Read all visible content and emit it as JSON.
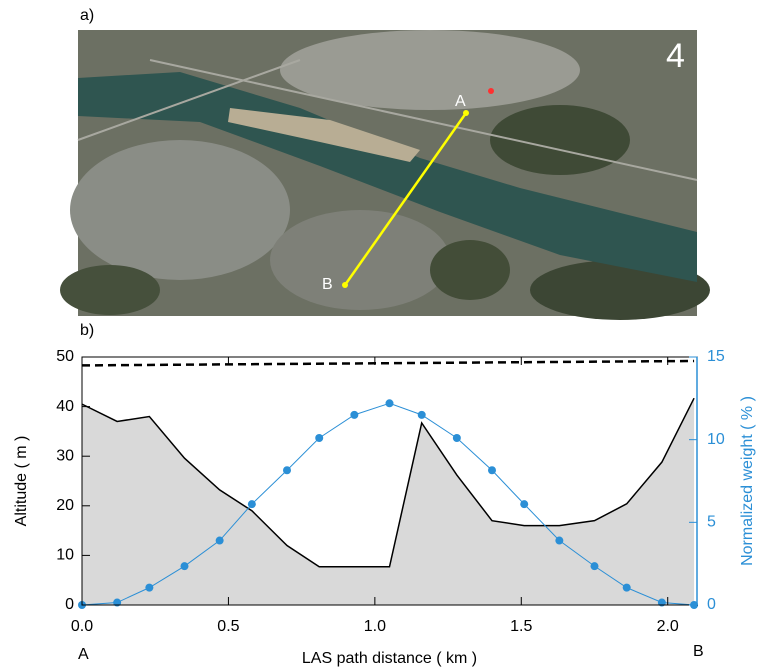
{
  "panel_a": {
    "label": "a)",
    "number": "4",
    "point_a": "A",
    "point_b": "B"
  },
  "chart_data": {
    "type": "line",
    "panel_label": "b)",
    "xlabel": "LAS path distance ( km )",
    "ylabel": "Altitude ( m )",
    "y2label": "Normalized weight ( % )",
    "endpoint_labels": [
      "A",
      "B"
    ],
    "x": [
      0,
      0.12,
      0.23,
      0.35,
      0.47,
      0.58,
      0.7,
      0.81,
      0.93,
      1.05,
      1.16,
      1.28,
      1.4,
      1.51,
      1.63,
      1.75,
      1.86,
      1.98,
      2.09
    ],
    "series": [
      {
        "color": "#000000",
        "fill": "#d9d9d9",
        "values": [
          40.5,
          37,
          38,
          29.6,
          23.2,
          19,
          12,
          7.7,
          7.7,
          7.7,
          36.7,
          26.2,
          17,
          16,
          16,
          17,
          20.4,
          28.8,
          41.7
        ]
      },
      {
        "color": "#2b8fd6",
        "axis": "y2",
        "markers": true,
        "values": [
          0,
          0.15,
          1.05,
          2.35,
          3.9,
          6.1,
          8.15,
          10.1,
          11.5,
          12.2,
          11.5,
          10.1,
          8.15,
          6.1,
          3.9,
          2.35,
          1.05,
          0.15,
          0
        ]
      }
    ],
    "dashed_line": {
      "x": [
        0,
        2.09
      ],
      "values": [
        48.3,
        49.2
      ],
      "color": "#000000"
    },
    "xlim": [
      0,
      2.1
    ],
    "ylim": [
      0,
      50
    ],
    "y2lim": [
      0,
      15
    ],
    "xticks": [
      {
        "value": 0,
        "label": "0.0"
      },
      {
        "value": 0.5,
        "label": "0.5"
      },
      {
        "value": 1,
        "label": "1.0"
      },
      {
        "value": 1.5,
        "label": "1.5"
      },
      {
        "value": 2,
        "label": "2.0"
      }
    ],
    "yticks": [
      0,
      10,
      20,
      30,
      40,
      50
    ],
    "y2ticks": [
      0,
      5,
      10,
      15
    ]
  }
}
